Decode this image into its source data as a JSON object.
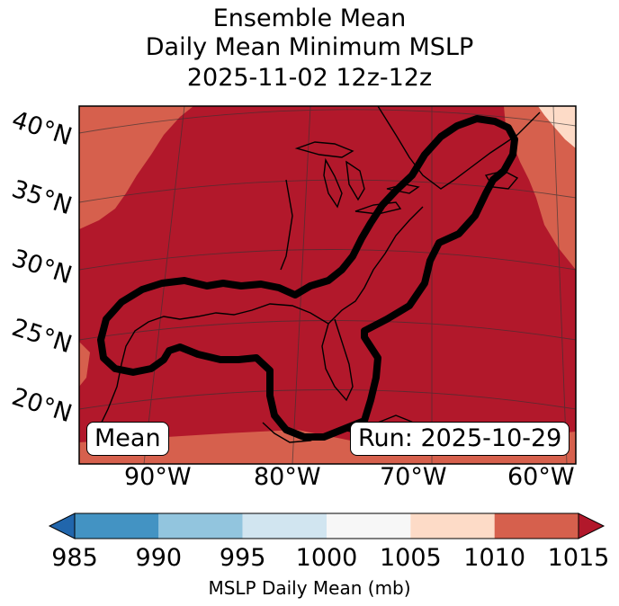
{
  "title": {
    "line1": "Ensemble Mean",
    "line2": "Daily Mean Minimum MSLP",
    "line3": "2025-11-02 12z-12z"
  },
  "map": {
    "lat_labels": [
      "40°N",
      "35°N",
      "30°N",
      "25°N",
      "20°N"
    ],
    "lon_labels": [
      "90°W",
      "80°W",
      "70°W",
      "60°W"
    ],
    "inset_left": "Mean",
    "inset_right": "Run: 2025-10-29"
  },
  "colorbar": {
    "ticks": [
      "985",
      "990",
      "995",
      "1000",
      "1005",
      "1010",
      "1015"
    ],
    "colors": [
      "#2166ac",
      "#4393c3",
      "#92c5de",
      "#d1e5f0",
      "#f7f7f7",
      "#fddbc7",
      "#d6604d",
      "#b2182b"
    ],
    "label": "MSLP Daily Mean (mb)"
  }
}
